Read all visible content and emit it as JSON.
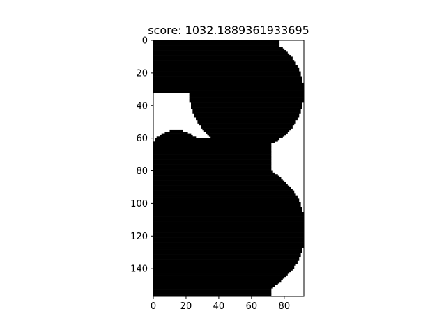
{
  "chart_data": {
    "type": "heatmap",
    "title": "score: 1032.1889361933695",
    "xlabel": "",
    "ylabel": "",
    "grid": false,
    "colormap": "binary: 1 = black filled, 0 = white",
    "colors": {
      "filled": "#000000",
      "empty": "#ffffff",
      "frame": "#000000"
    },
    "image_shape": {
      "rows": 157,
      "cols": 92
    },
    "xlim": [
      0,
      92
    ],
    "ylim": [
      157,
      0
    ],
    "x_ticks": [
      0,
      20,
      40,
      60,
      80
    ],
    "y_ticks": [
      0,
      20,
      40,
      60,
      80,
      100,
      120,
      140
    ],
    "filled_regions": [
      {
        "shape": "rect",
        "x0": 0,
        "x1": 77,
        "y0": 0,
        "y1": 32
      },
      {
        "shape": "circle",
        "cx": 57,
        "cy": 32,
        "r": 35
      },
      {
        "shape": "rect",
        "x0": 27,
        "x1": 72,
        "y0": 60,
        "y1": 157
      },
      {
        "shape": "circle",
        "cx": 14,
        "cy": 72,
        "r": 17
      },
      {
        "shape": "rect",
        "x0": 0,
        "x1": 31,
        "y0": 72,
        "y1": 157
      },
      {
        "shape": "circle",
        "cx": 52,
        "cy": 116,
        "r": 41
      }
    ]
  }
}
